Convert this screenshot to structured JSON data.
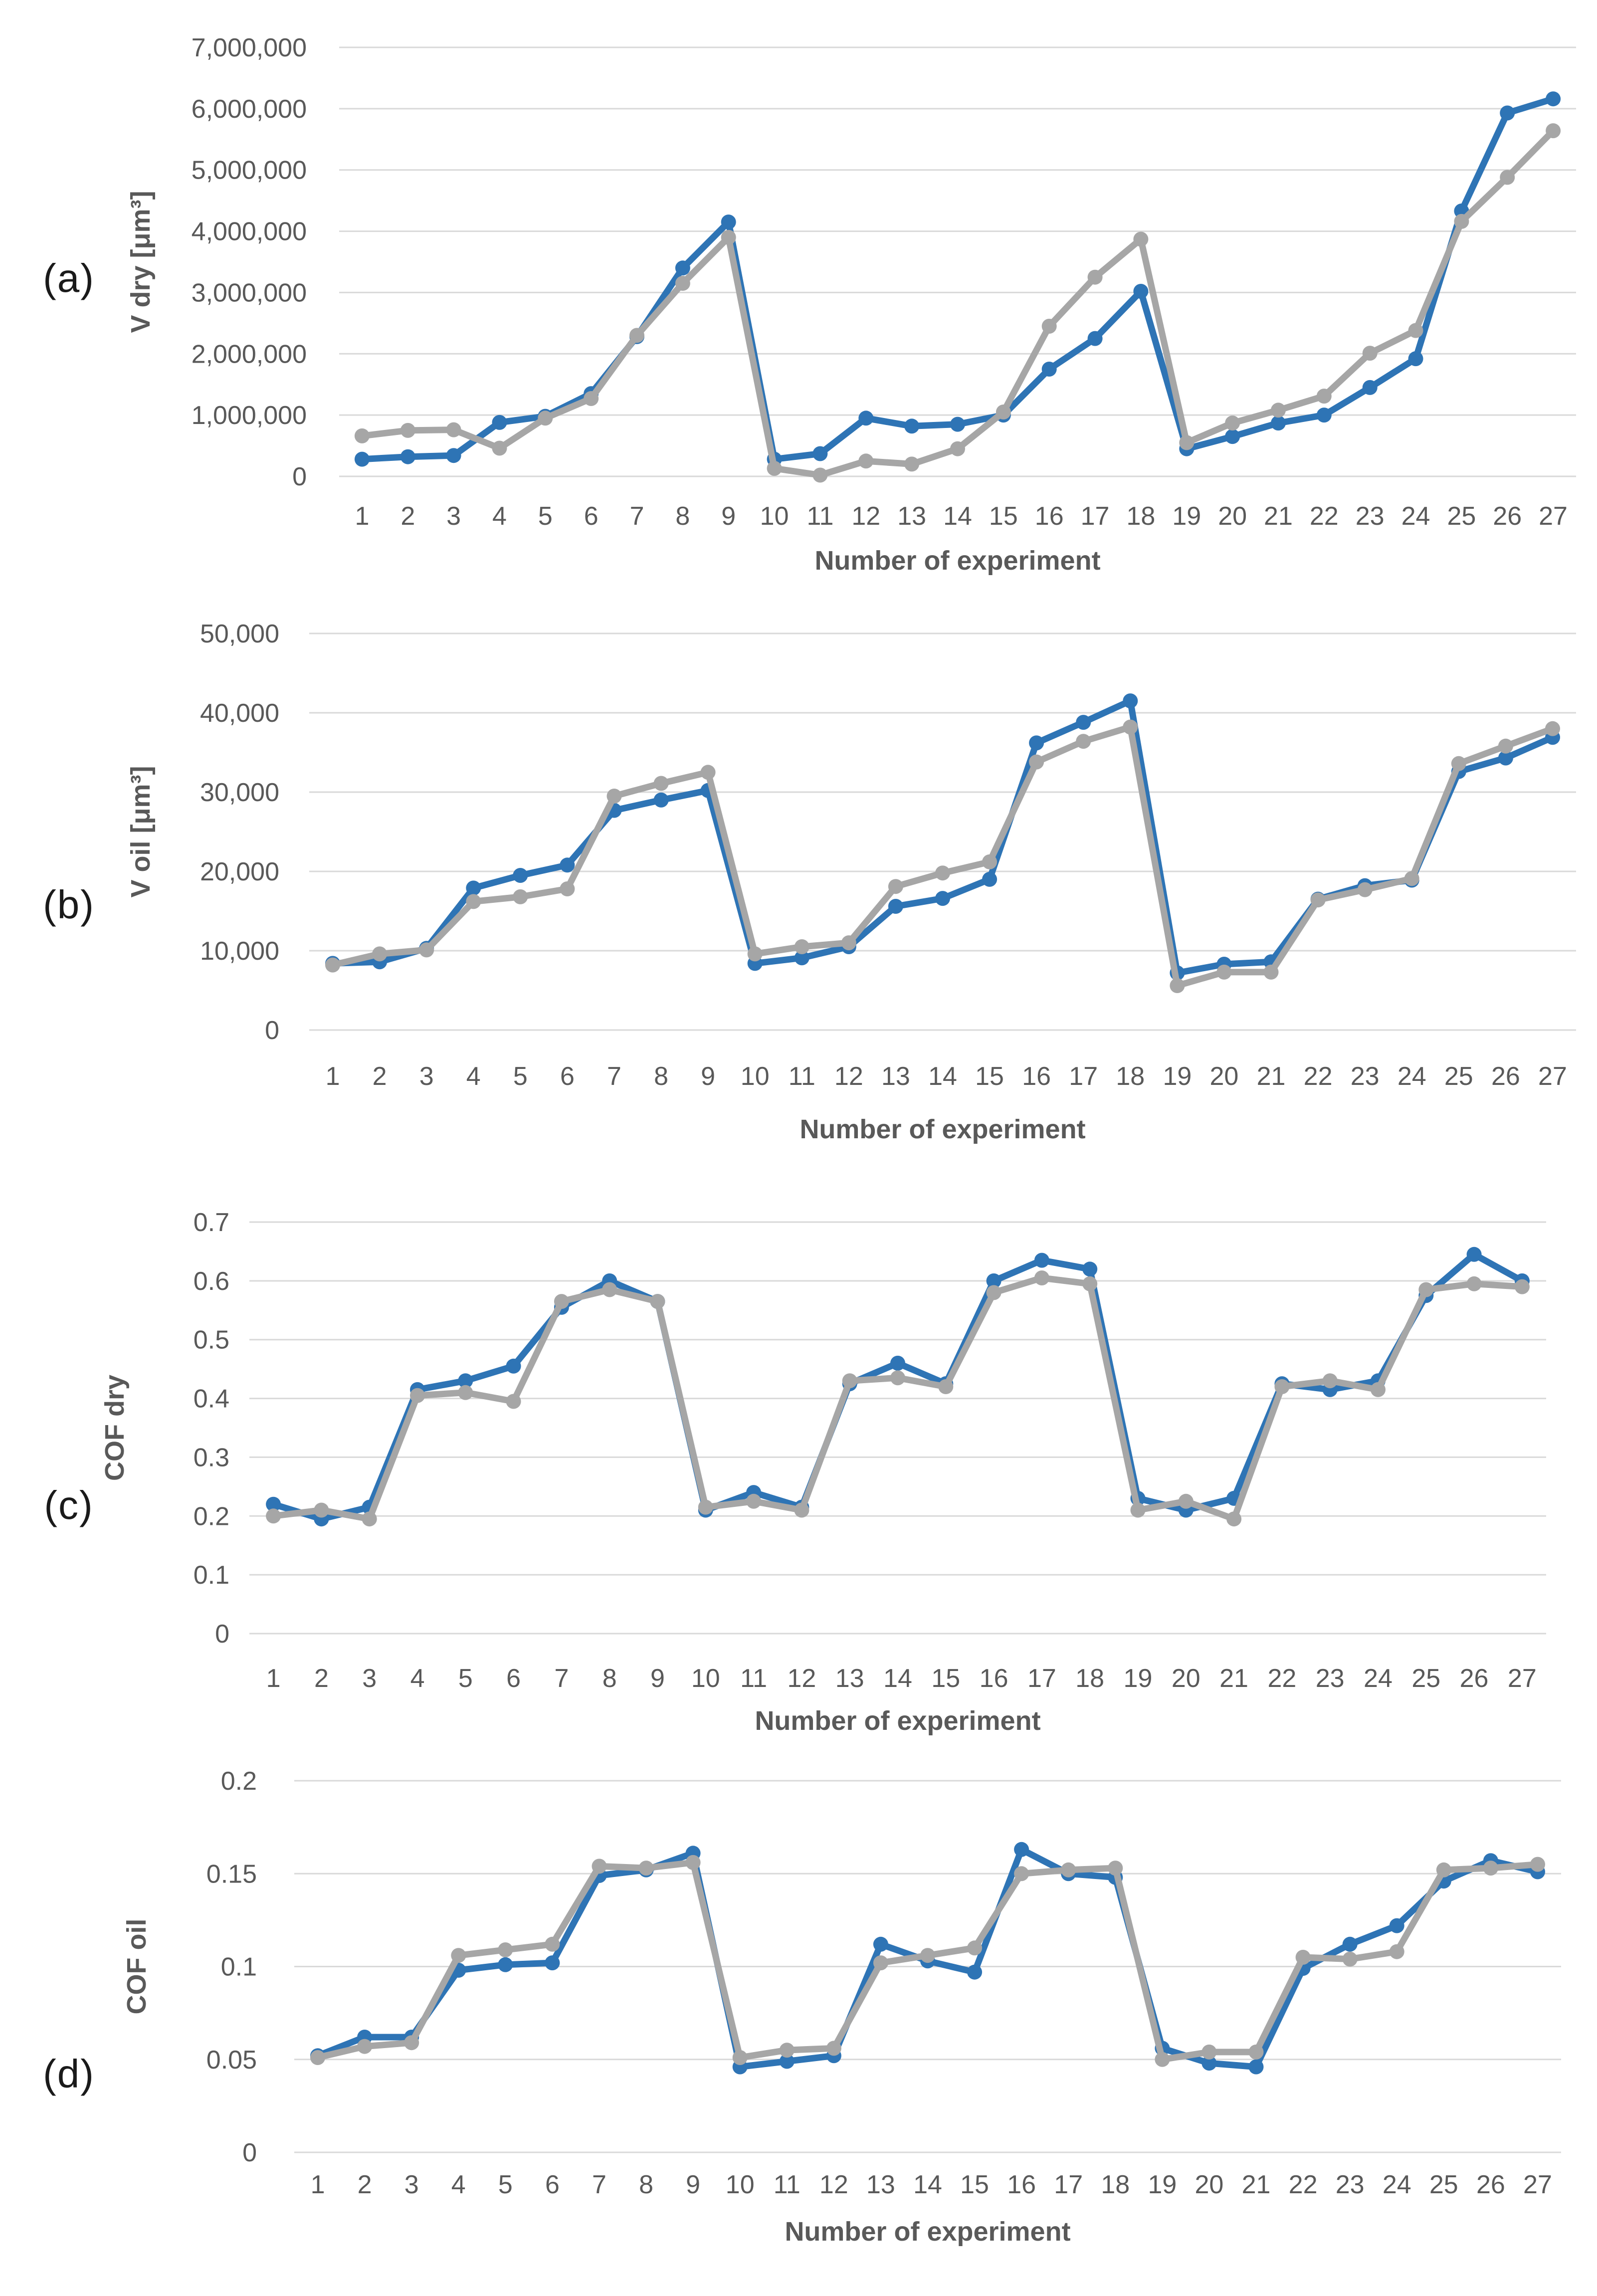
{
  "colors": {
    "blue_series": "#2E74B5",
    "gray_series": "#A6A6A6",
    "gridline": "#D9D9D9",
    "tick_text": "#595959",
    "axis_title_text": "#595959",
    "panel_letter_text": "#1A1A1A",
    "background": "#FFFFFF"
  },
  "chart_data": [
    {
      "type": "line",
      "panel_label": "(a)",
      "y_axis_label": "V dry [μm³]",
      "x_axis_label": "Number of experiment",
      "grid": true,
      "legend_position": "none",
      "ylim": [
        0,
        7000000
      ],
      "y_tick_labels": [
        "0",
        "1,000,000",
        "2,000,000",
        "3,000,000",
        "4,000,000",
        "5,000,000",
        "6,000,000",
        "7,000,000"
      ],
      "x_categories": [
        "1",
        "2",
        "3",
        "4",
        "5",
        "6",
        "7",
        "8",
        "9",
        "10",
        "11",
        "12",
        "13",
        "14",
        "15",
        "16",
        "17",
        "18",
        "19",
        "20",
        "21",
        "22",
        "23",
        "24",
        "25",
        "26",
        "27"
      ],
      "series": [
        {
          "name": "blue-series",
          "color": "#2E74B5",
          "values": [
            280000,
            320000,
            340000,
            880000,
            980000,
            1350000,
            2280000,
            3400000,
            4150000,
            280000,
            370000,
            950000,
            820000,
            850000,
            1000000,
            1750000,
            2250000,
            3020000,
            450000,
            650000,
            870000,
            1000000,
            1450000,
            1920000,
            4330000,
            5930000,
            6160000
          ]
        },
        {
          "name": "gray-series",
          "color": "#A6A6A6",
          "values": [
            660000,
            750000,
            760000,
            460000,
            950000,
            1270000,
            2300000,
            3150000,
            3900000,
            130000,
            20000,
            250000,
            200000,
            450000,
            1050000,
            2450000,
            3250000,
            3870000,
            550000,
            870000,
            1080000,
            1310000,
            2010000,
            2380000,
            4160000,
            4880000,
            5640000
          ]
        }
      ]
    },
    {
      "type": "line",
      "panel_label": "(b)",
      "y_axis_label": "V oil [μm³]",
      "x_axis_label": "Number of experiment",
      "grid": true,
      "legend_position": "none",
      "ylim": [
        0,
        50000
      ],
      "y_tick_labels": [
        "0",
        "10,000",
        "20,000",
        "30,000",
        "40,000",
        "50,000"
      ],
      "x_categories": [
        "1",
        "2",
        "3",
        "4",
        "5",
        "6",
        "7",
        "8",
        "9",
        "10",
        "11",
        "12",
        "13",
        "14",
        "15",
        "16",
        "17",
        "18",
        "19",
        "20",
        "21",
        "22",
        "23",
        "24",
        "25",
        "26",
        "27"
      ],
      "series": [
        {
          "name": "blue-series",
          "color": "#2E74B5",
          "values": [
            8400,
            8600,
            10300,
            17900,
            19500,
            20800,
            27700,
            29000,
            30200,
            8400,
            9100,
            10500,
            15600,
            16600,
            19000,
            36200,
            38800,
            41500,
            7200,
            8300,
            8600,
            16500,
            18200,
            18900,
            32600,
            34300,
            36900
          ]
        },
        {
          "name": "gray-series",
          "color": "#A6A6A6",
          "values": [
            8200,
            9600,
            10100,
            16200,
            16800,
            17800,
            29500,
            31100,
            32500,
            9600,
            10500,
            11000,
            18100,
            19800,
            21200,
            33800,
            36400,
            38200,
            5600,
            7300,
            7300,
            16400,
            17700,
            19100,
            33600,
            35800,
            38000
          ]
        }
      ]
    },
    {
      "type": "line",
      "panel_label": "(c)",
      "y_axis_label": "COF dry",
      "x_axis_label": "Number of experiment",
      "grid": true,
      "legend_position": "none",
      "ylim": [
        0,
        0.7
      ],
      "y_tick_labels": [
        "0",
        "0.1",
        "0.2",
        "0.3",
        "0.4",
        "0.5",
        "0.6",
        "0.7"
      ],
      "x_categories": [
        "1",
        "2",
        "3",
        "4",
        "5",
        "6",
        "7",
        "8",
        "9",
        "10",
        "11",
        "12",
        "13",
        "14",
        "15",
        "16",
        "17",
        "18",
        "19",
        "20",
        "21",
        "22",
        "23",
        "24",
        "25",
        "26",
        "27"
      ],
      "series": [
        {
          "name": "blue-series",
          "color": "#2E74B5",
          "values": [
            0.22,
            0.195,
            0.215,
            0.415,
            0.43,
            0.455,
            0.555,
            0.6,
            0.565,
            0.21,
            0.24,
            0.215,
            0.425,
            0.46,
            0.425,
            0.6,
            0.635,
            0.62,
            0.23,
            0.21,
            0.23,
            0.425,
            0.415,
            0.43,
            0.575,
            0.645,
            0.6
          ]
        },
        {
          "name": "gray-series",
          "color": "#A6A6A6",
          "values": [
            0.2,
            0.21,
            0.195,
            0.405,
            0.41,
            0.395,
            0.565,
            0.585,
            0.565,
            0.215,
            0.225,
            0.21,
            0.43,
            0.435,
            0.42,
            0.58,
            0.605,
            0.595,
            0.21,
            0.225,
            0.195,
            0.42,
            0.43,
            0.415,
            0.585,
            0.595,
            0.59
          ]
        }
      ]
    },
    {
      "type": "line",
      "panel_label": "(d)",
      "y_axis_label": "COF oil",
      "x_axis_label": "Number of experiment",
      "grid": true,
      "legend_position": "none",
      "ylim": [
        0,
        0.2
      ],
      "y_tick_labels": [
        "0",
        "0.05",
        "0.1",
        "0.15",
        "0.2"
      ],
      "x_categories": [
        "1",
        "2",
        "3",
        "4",
        "5",
        "6",
        "7",
        "8",
        "9",
        "10",
        "11",
        "12",
        "13",
        "14",
        "15",
        "16",
        "17",
        "18",
        "19",
        "20",
        "21",
        "22",
        "23",
        "24",
        "25",
        "26",
        "27"
      ],
      "series": [
        {
          "name": "blue-series",
          "color": "#2E74B5",
          "values": [
            0.052,
            0.062,
            0.062,
            0.098,
            0.101,
            0.102,
            0.149,
            0.152,
            0.161,
            0.046,
            0.049,
            0.052,
            0.112,
            0.103,
            0.097,
            0.163,
            0.15,
            0.148,
            0.056,
            0.048,
            0.046,
            0.099,
            0.112,
            0.122,
            0.146,
            0.157,
            0.151
          ]
        },
        {
          "name": "gray-series",
          "color": "#A6A6A6",
          "values": [
            0.051,
            0.057,
            0.059,
            0.106,
            0.109,
            0.112,
            0.154,
            0.153,
            0.156,
            0.051,
            0.055,
            0.056,
            0.102,
            0.106,
            0.11,
            0.15,
            0.152,
            0.153,
            0.05,
            0.054,
            0.054,
            0.105,
            0.104,
            0.108,
            0.152,
            0.153,
            0.155
          ]
        }
      ]
    }
  ]
}
